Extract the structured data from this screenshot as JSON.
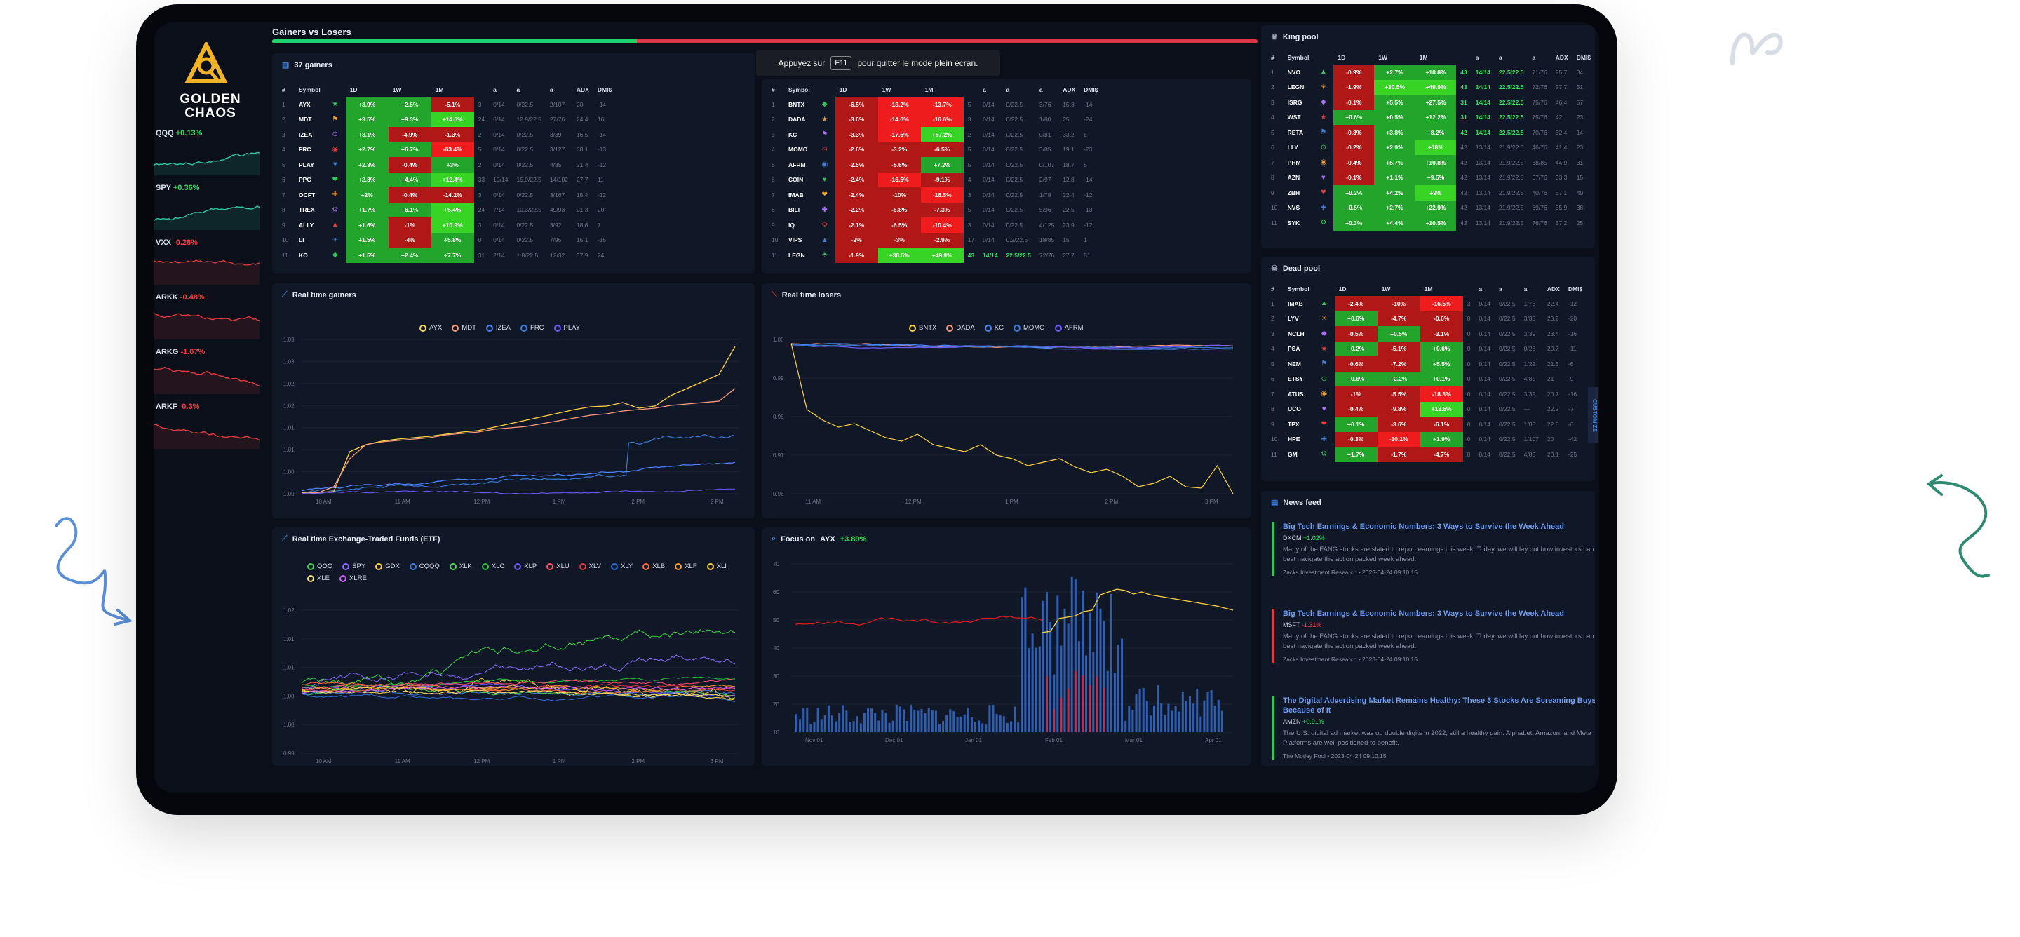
{
  "toast": {
    "before": "Appuyez sur",
    "key": "F11",
    "after": "pour quitter le mode plein écran."
  },
  "brand": {
    "line1": "GOLDEN",
    "line2": "CHAOS"
  },
  "sidebar": [
    {
      "sym": "QQQ",
      "chg": "+0.13%",
      "dir": "up"
    },
    {
      "sym": "SPY",
      "chg": "+0.36%",
      "dir": "up"
    },
    {
      "sym": "VXX",
      "chg": "-0.28%",
      "dir": "dn"
    },
    {
      "sym": "ARKK",
      "chg": "-0.48%",
      "dir": "dn"
    },
    {
      "sym": "ARKG",
      "chg": "-1.07%",
      "dir": "dn"
    },
    {
      "sym": "ARKF",
      "chg": "-0.3%",
      "dir": "dn"
    }
  ],
  "gvl": {
    "title": "Gainers vs Losers",
    "gainers_pct": 0.37
  },
  "gainers": {
    "title": "37 gainers",
    "cols": [
      "#",
      "Symbol",
      "",
      "1D",
      "1W",
      "1M",
      "",
      "a",
      "a",
      "a",
      "ADX",
      "DMI$"
    ],
    "rows": [
      [
        "1",
        "AYX",
        "+3.9%",
        "+2.5%",
        "-5.1%",
        "3",
        "0/14",
        "0/22.5",
        "2/107",
        "20",
        "-14"
      ],
      [
        "2",
        "MDT",
        "+3.5%",
        "+9.3%",
        "+14.6%",
        "24",
        "6/14",
        "12.9/22.5",
        "27/76",
        "24.4",
        "16"
      ],
      [
        "3",
        "IZEA",
        "+3.1%",
        "-4.9%",
        "-1.3%",
        "2",
        "0/14",
        "0/22.5",
        "3/39",
        "16.5",
        "-14"
      ],
      [
        "4",
        "FRC",
        "+2.7%",
        "+6.7%",
        "-63.4%",
        "5",
        "0/14",
        "0/22.5",
        "3/127",
        "38.1",
        "-13"
      ],
      [
        "5",
        "PLAY",
        "+2.3%",
        "-0.4%",
        "+3%",
        "2",
        "0/14",
        "0/22.5",
        "4/85",
        "21.4",
        "-12"
      ],
      [
        "6",
        "PPG",
        "+2.3%",
        "+4.4%",
        "+12.4%",
        "33",
        "10/14",
        "15.9/22.5",
        "14/102",
        "27.7",
        "11"
      ],
      [
        "7",
        "OCFT",
        "+2%",
        "-0.4%",
        "-14.2%",
        "3",
        "0/14",
        "0/22.5",
        "3/167",
        "15.4",
        "-12"
      ],
      [
        "8",
        "TREX",
        "+1.7%",
        "+6.1%",
        "+5.4%",
        "24",
        "7/14",
        "10.3/22.5",
        "49/93",
        "21.3",
        "20"
      ],
      [
        "9",
        "ALLY",
        "+1.6%",
        "-1%",
        "+10.9%",
        "3",
        "0/14",
        "0/22.5",
        "3/92",
        "18.6",
        "7"
      ],
      [
        "10",
        "LI",
        "+1.5%",
        "-4%",
        "+5.8%",
        "0",
        "0/14",
        "0/22.5",
        "7/95",
        "15.1",
        "-15"
      ],
      [
        "11",
        "KO",
        "+1.5%",
        "+2.4%",
        "+7.7%",
        "31",
        "2/14",
        "1.8/22.5",
        "12/32",
        "37.9",
        "24"
      ]
    ],
    "cls": [
      [
        "g",
        "g",
        "r"
      ],
      [
        "g",
        "g",
        "gl"
      ],
      [
        "g",
        "r",
        "r"
      ],
      [
        "g",
        "g",
        "rl"
      ],
      [
        "g",
        "r",
        "g"
      ],
      [
        "g",
        "g",
        "gl"
      ],
      [
        "g",
        "r",
        "r"
      ],
      [
        "g",
        "g",
        "gl"
      ],
      [
        "g",
        "r",
        "gl"
      ],
      [
        "g",
        "r",
        "g"
      ],
      [
        "g",
        "g",
        "g"
      ]
    ]
  },
  "losers": {
    "cols": [
      "#",
      "Symbol",
      "",
      "1D",
      "1W",
      "1M",
      "",
      "a",
      "a",
      "a",
      "ADX",
      "DMI$"
    ],
    "rows": [
      [
        "1",
        "BNTX",
        "-6.5%",
        "-13.2%",
        "-13.7%",
        "5",
        "0/14",
        "0/22.5",
        "3/76",
        "15.3",
        "-14"
      ],
      [
        "2",
        "DADA",
        "-3.6%",
        "-14.6%",
        "-16.6%",
        "3",
        "0/14",
        "0/22.5",
        "1/80",
        "25",
        "-24"
      ],
      [
        "3",
        "KC",
        "-3.3%",
        "-17.6%",
        "+57.2%",
        "2",
        "0/14",
        "0/22.5",
        "0/81",
        "33.2",
        "8"
      ],
      [
        "4",
        "MOMO",
        "-2.6%",
        "-3.2%",
        "-6.5%",
        "5",
        "0/14",
        "0/22.5",
        "3/85",
        "19.1",
        "-23"
      ],
      [
        "5",
        "AFRM",
        "-2.5%",
        "-5.6%",
        "+7.2%",
        "5",
        "0/14",
        "0/22.5",
        "0/107",
        "18.7",
        "5"
      ],
      [
        "6",
        "COIN",
        "-2.4%",
        "-16.5%",
        "-9.1%",
        "4",
        "0/14",
        "0/22.5",
        "2/97",
        "12.8",
        "-14"
      ],
      [
        "7",
        "IMAB",
        "-2.4%",
        "-10%",
        "-16.5%",
        "3",
        "0/14",
        "0/22.5",
        "1/78",
        "22.4",
        "-12"
      ],
      [
        "8",
        "BILI",
        "-2.2%",
        "-6.8%",
        "-7.3%",
        "5",
        "0/14",
        "0/22.5",
        "5/96",
        "22.5",
        "-13"
      ],
      [
        "9",
        "IQ",
        "-2.1%",
        "-6.5%",
        "-10.4%",
        "3",
        "0/14",
        "0/22.5",
        "4/125",
        "23.9",
        "-12"
      ],
      [
        "10",
        "VIPS",
        "-2%",
        "-3%",
        "-2.9%",
        "17",
        "0/14",
        "0.2/22.5",
        "18/85",
        "15",
        "1"
      ],
      [
        "11",
        "LEGN",
        "-1.9%",
        "+30.5%",
        "+49.9%",
        "43",
        "14/14",
        "22.5/22.5",
        "72/76",
        "27.7",
        "51"
      ]
    ],
    "cls": [
      [
        "r",
        "rl",
        "rl"
      ],
      [
        "r",
        "rl",
        "rl"
      ],
      [
        "r",
        "rl",
        "gl"
      ],
      [
        "r",
        "r",
        "r"
      ],
      [
        "r",
        "r",
        "g"
      ],
      [
        "r",
        "rl",
        "r"
      ],
      [
        "r",
        "r",
        "rl"
      ],
      [
        "r",
        "r",
        "r"
      ],
      [
        "r",
        "r",
        "rl"
      ],
      [
        "r",
        "r",
        "r"
      ],
      [
        "r",
        "gl",
        "gl"
      ]
    ]
  },
  "king": {
    "title": "King pool",
    "cols": [
      "#",
      "Symbol",
      "",
      "1D",
      "1W",
      "1M",
      "",
      "a",
      "a",
      "a",
      "ADX",
      "DMI$"
    ],
    "rows": [
      [
        "1",
        "NVO",
        "-0.9%",
        "+2.7%",
        "+18.8%",
        "43",
        "14/14",
        "22.5/22.5",
        "71/76",
        "25.7",
        "34"
      ],
      [
        "2",
        "LEGN",
        "-1.9%",
        "+30.5%",
        "+49.9%",
        "43",
        "14/14",
        "22.5/22.5",
        "72/76",
        "27.7",
        "51"
      ],
      [
        "3",
        "ISRG",
        "-0.1%",
        "+5.5%",
        "+27.5%",
        "31",
        "14/14",
        "22.5/22.5",
        "75/76",
        "46.4",
        "57"
      ],
      [
        "4",
        "WST",
        "+0.6%",
        "+0.5%",
        "+12.2%",
        "31",
        "14/14",
        "22.5/22.5",
        "75/76",
        "42",
        "23"
      ],
      [
        "5",
        "RETA",
        "-0.3%",
        "+3.8%",
        "+8.2%",
        "42",
        "14/14",
        "22.5/22.5",
        "70/76",
        "32.4",
        "14"
      ],
      [
        "6",
        "LLY",
        "-0.2%",
        "+2.9%",
        "+18%",
        "42",
        "13/14",
        "21.9/22.5",
        "46/76",
        "41.4",
        "23"
      ],
      [
        "7",
        "PHM",
        "-0.4%",
        "+5.7%",
        "+10.8%",
        "42",
        "13/14",
        "21.9/22.5",
        "68/85",
        "44.9",
        "31"
      ],
      [
        "8",
        "AZN",
        "-0.1%",
        "+1.1%",
        "+9.5%",
        "42",
        "13/14",
        "21.9/22.5",
        "67/76",
        "33.3",
        "15"
      ],
      [
        "9",
        "ZBH",
        "+0.2%",
        "+4.2%",
        "+9%",
        "42",
        "13/14",
        "21.9/22.5",
        "40/76",
        "37.1",
        "40"
      ],
      [
        "10",
        "NVS",
        "+0.5%",
        "+2.7%",
        "+22.9%",
        "42",
        "13/14",
        "21.9/22.5",
        "69/76",
        "35.9",
        "38"
      ],
      [
        "11",
        "SYK",
        "+0.3%",
        "+4.4%",
        "+10.5%",
        "42",
        "13/14",
        "21.9/22.5",
        "76/76",
        "37.2",
        "25"
      ]
    ],
    "cls": [
      [
        "r",
        "g",
        "g"
      ],
      [
        "r",
        "gl",
        "gl"
      ],
      [
        "r",
        "g",
        "g"
      ],
      [
        "g",
        "g",
        "g"
      ],
      [
        "r",
        "g",
        "g"
      ],
      [
        "r",
        "g",
        "gl"
      ],
      [
        "r",
        "g",
        "g"
      ],
      [
        "r",
        "g",
        "g"
      ],
      [
        "g",
        "g",
        "gl"
      ],
      [
        "g",
        "g",
        "g"
      ],
      [
        "g",
        "g",
        "g"
      ]
    ]
  },
  "dead": {
    "title": "Dead pool",
    "cols": [
      "#",
      "Symbol",
      "",
      "1D",
      "1W",
      "1M",
      "",
      "a",
      "a",
      "a",
      "ADX",
      "DMI$"
    ],
    "rows": [
      [
        "1",
        "IMAB",
        "-2.4%",
        "-10%",
        "-16.5%",
        "3",
        "0/14",
        "0/22.5",
        "1/78",
        "22.4",
        "-12"
      ],
      [
        "2",
        "LYV",
        "+0.6%",
        "-4.7%",
        "-0.6%",
        "0",
        "0/14",
        "0/22.5",
        "3/38",
        "23.2",
        "-20"
      ],
      [
        "3",
        "NCLH",
        "-0.5%",
        "+0.5%",
        "-3.1%",
        "0",
        "0/14",
        "0/22.5",
        "3/39",
        "23.4",
        "-16"
      ],
      [
        "4",
        "PSA",
        "+0.2%",
        "-5.1%",
        "+0.6%",
        "0",
        "0/14",
        "0/22.5",
        "0/28",
        "20.7",
        "-11"
      ],
      [
        "5",
        "NEM",
        "-0.6%",
        "-7.2%",
        "+5.5%",
        "0",
        "0/14",
        "0/22.5",
        "1/22",
        "21.3",
        "-6"
      ],
      [
        "6",
        "ETSY",
        "+0.6%",
        "+2.2%",
        "+0.1%",
        "0",
        "0/14",
        "0/22.5",
        "4/85",
        "21",
        "-9"
      ],
      [
        "7",
        "ATUS",
        "-1%",
        "-5.5%",
        "-18.3%",
        "0",
        "0/14",
        "0/22.5",
        "3/39",
        "20.7",
        "-16"
      ],
      [
        "8",
        "UCO",
        "-0.4%",
        "-9.8%",
        "+13.6%",
        "0",
        "0/14",
        "0/22.5",
        "—",
        "22.2",
        "-7"
      ],
      [
        "9",
        "TPX",
        "+0.1%",
        "-3.6%",
        "-6.1%",
        "0",
        "0/14",
        "0/22.5",
        "1/85",
        "22.8",
        "-6"
      ],
      [
        "10",
        "HPE",
        "-0.3%",
        "-10.1%",
        "+1.9%",
        "0",
        "0/14",
        "0/22.5",
        "1/107",
        "20",
        "-42"
      ],
      [
        "11",
        "GM",
        "+1.7%",
        "-1.7%",
        "-4.7%",
        "0",
        "0/14",
        "0/22.5",
        "4/85",
        "20.1",
        "-25"
      ]
    ],
    "cls": [
      [
        "r",
        "r",
        "rl"
      ],
      [
        "g",
        "r",
        "r"
      ],
      [
        "r",
        "g",
        "r"
      ],
      [
        "g",
        "r",
        "g"
      ],
      [
        "r",
        "r",
        "g"
      ],
      [
        "g",
        "g",
        "g"
      ],
      [
        "r",
        "r",
        "rl"
      ],
      [
        "r",
        "r",
        "gl"
      ],
      [
        "g",
        "r",
        "r"
      ],
      [
        "r",
        "rl",
        "g"
      ],
      [
        "g",
        "r",
        "r"
      ]
    ]
  },
  "rt_gainers": {
    "title": "Real time gainers",
    "legend": [
      {
        "name": "AYX",
        "color": "#ffd23f"
      },
      {
        "name": "MDT",
        "color": "#ff9a7a"
      },
      {
        "name": "IZEA",
        "color": "#4d86ff"
      },
      {
        "name": "FRC",
        "color": "#3a7bd5"
      },
      {
        "name": "PLAY",
        "color": "#6f5cff"
      }
    ],
    "yticks": [
      "1.03",
      "1.03",
      "1.02",
      "1.02",
      "1.01",
      "1.01",
      "1.00",
      "1.00"
    ],
    "xticks": [
      "10 AM",
      "11 AM",
      "12 PM",
      "1 PM",
      "2 PM",
      "2 PM"
    ]
  },
  "rt_losers": {
    "title": "Real time losers",
    "legend": [
      {
        "name": "BNTX",
        "color": "#ffd23f"
      },
      {
        "name": "DADA",
        "color": "#ff9a7a"
      },
      {
        "name": "KC",
        "color": "#4d86ff"
      },
      {
        "name": "MOMO",
        "color": "#3a7bd5"
      },
      {
        "name": "AFRM",
        "color": "#6f5cff"
      }
    ],
    "yticks": [
      "1.00",
      "0.99",
      "0.98",
      "0.97",
      "0.96"
    ],
    "xticks": [
      "11 AM",
      "12 PM",
      "1 PM",
      "2 PM",
      "3 PM"
    ]
  },
  "etf": {
    "title": "Real time Exchange-Traded Funds (ETF)",
    "legend": [
      {
        "name": "QQQ",
        "color": "#39d640"
      },
      {
        "name": "SPY",
        "color": "#8a6cff"
      },
      {
        "name": "GDX",
        "color": "#ffd23f"
      },
      {
        "name": "CQQQ",
        "color": "#3a7bd5"
      },
      {
        "name": "XLK",
        "color": "#4fd65a"
      },
      {
        "name": "XLC",
        "color": "#27c935"
      },
      {
        "name": "XLP",
        "color": "#6f5cff"
      },
      {
        "name": "XLU",
        "color": "#ff4d6d"
      },
      {
        "name": "XLV",
        "color": "#e23b3b"
      },
      {
        "name": "XLY",
        "color": "#2e6fd8"
      },
      {
        "name": "XLB",
        "color": "#ff6b3d"
      },
      {
        "name": "XLF",
        "color": "#ff9f2e"
      },
      {
        "name": "XLI",
        "color": "#ffcf3f"
      },
      {
        "name": "XLE",
        "color": "#ffe066"
      },
      {
        "name": "XLRE",
        "color": "#d35cff"
      }
    ],
    "yticks": [
      "1.02",
      "1.01",
      "1.01",
      "1.00",
      "1.00",
      "0.99"
    ],
    "xticks": [
      "10 AM",
      "11 AM",
      "12 PM",
      "1 PM",
      "2 PM",
      "3 PM"
    ]
  },
  "focus": {
    "title": "Focus on",
    "sym": "AYX",
    "chg": "+3.89%",
    "yticks": [
      "70",
      "60",
      "50",
      "40",
      "30",
      "20",
      "10"
    ],
    "xticks": [
      "Nov 01",
      "Dec 01",
      "Jan 01",
      "Feb 01",
      "Mar 01",
      "Apr 01"
    ]
  },
  "news": {
    "title": "News feed",
    "items": [
      {
        "title": "Big Tech Earnings & Economic Numbers: 3 Ways to Survive the Week Ahead",
        "sym": "DXCM",
        "chg": "+1.02%",
        "dir": "up",
        "body": "Many of the FANG stocks are slated to report earnings this week. Today, we will lay out how investors can best navigate the action packed week ahead.",
        "src": "Zacks Investment Research • 2023-04-24 09:10:15",
        "color": "#2ec95a"
      },
      {
        "title": "Big Tech Earnings & Economic Numbers: 3 Ways to Survive the Week Ahead",
        "sym": "MSFT",
        "chg": "-1.31%",
        "dir": "dn",
        "body": "Many of the FANG stocks are slated to report earnings this week. Today, we will lay out how investors can best navigate the action packed week ahead.",
        "src": "Zacks Investment Research • 2023-04-24 09:10:15",
        "color": "#e23b3b"
      },
      {
        "title": "The Digital Advertising Market Remains Healthy: These 3 Stocks Are Screaming Buys Because of It",
        "sym": "AMZN",
        "chg": "+0.91%",
        "dir": "up",
        "body": "The U.S. digital ad market was up double digits in 2022, still a healthy gain. Alphabet, Amazon, and Meta Platforms are well positioned to benefit.",
        "src": "The Motley Fool • 2023-04-24 09:10:15",
        "color": "#2ec95a"
      }
    ]
  },
  "customize": "CUSTOMIZE"
}
